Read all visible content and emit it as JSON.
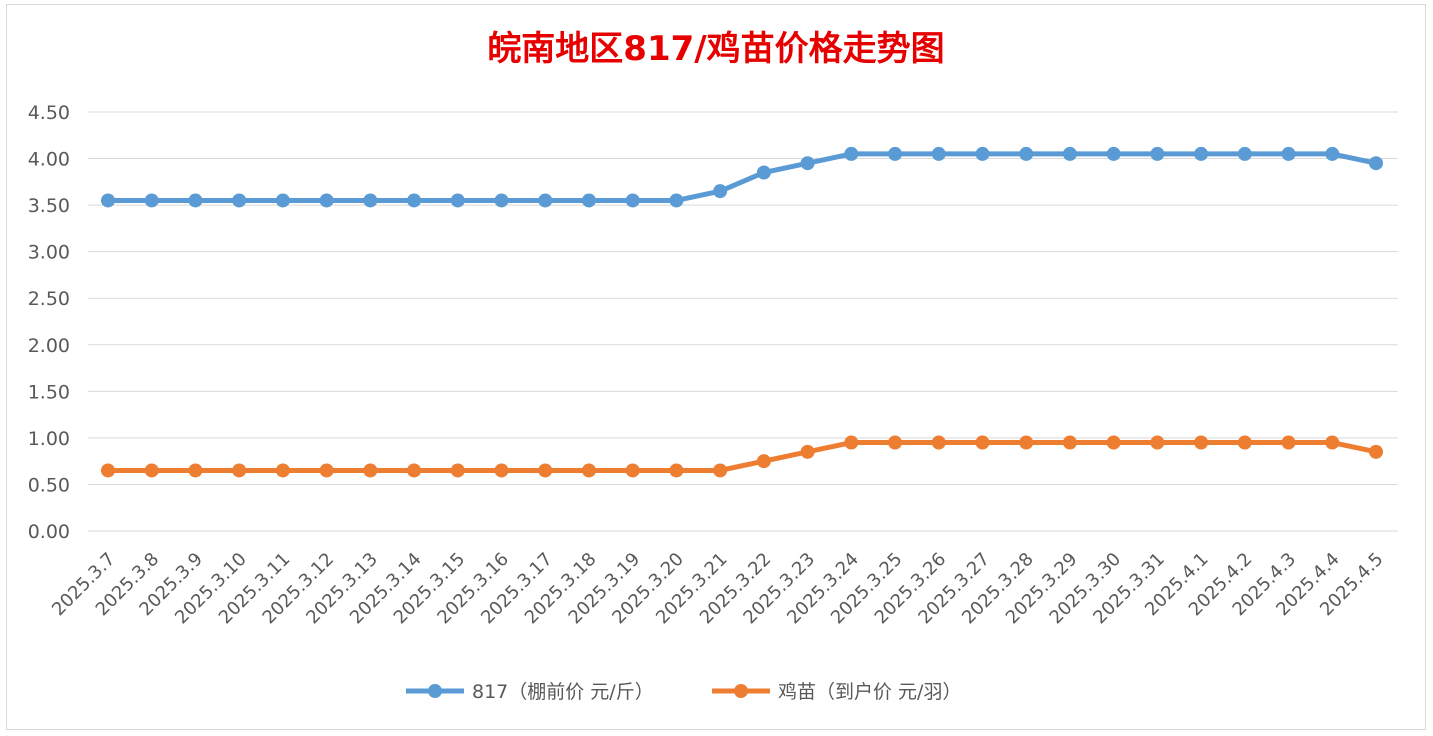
{
  "chart_data": {
    "type": "line",
    "title": "皖南地区817/鸡苗价格走势图",
    "xlabel": "",
    "ylabel": "",
    "ylim": [
      0,
      4.5
    ],
    "yticks": [
      "0.00",
      "0.50",
      "1.00",
      "1.50",
      "2.00",
      "2.50",
      "3.00",
      "3.50",
      "4.00",
      "4.50"
    ],
    "categories": [
      "2025.3.7",
      "2025.3.8",
      "2025.3.9",
      "2025.3.10",
      "2025.3.11",
      "2025.3.12",
      "2025.3.13",
      "2025.3.14",
      "2025.3.15",
      "2025.3.16",
      "2025.3.17",
      "2025.3.18",
      "2025.3.19",
      "2025.3.20",
      "2025.3.21",
      "2025.3.22",
      "2025.3.23",
      "2025.3.24",
      "2025.3.25",
      "2025.3.26",
      "2025.3.27",
      "2025.3.28",
      "2025.3.29",
      "2025.3.30",
      "2025.3.31",
      "2025.4.1",
      "2025.4.2",
      "2025.4.3",
      "2025.4.4",
      "2025.4.5"
    ],
    "series": [
      {
        "name": "817（棚前价 元/斤）",
        "color": "#5b9bd5",
        "values": [
          3.55,
          3.55,
          3.55,
          3.55,
          3.55,
          3.55,
          3.55,
          3.55,
          3.55,
          3.55,
          3.55,
          3.55,
          3.55,
          3.55,
          3.65,
          3.85,
          3.95,
          4.05,
          4.05,
          4.05,
          4.05,
          4.05,
          4.05,
          4.05,
          4.05,
          4.05,
          4.05,
          4.05,
          4.05,
          3.95
        ]
      },
      {
        "name": "鸡苗（到户价 元/羽）",
        "color": "#ed7d31",
        "values": [
          0.65,
          0.65,
          0.65,
          0.65,
          0.65,
          0.65,
          0.65,
          0.65,
          0.65,
          0.65,
          0.65,
          0.65,
          0.65,
          0.65,
          0.65,
          0.75,
          0.85,
          0.95,
          0.95,
          0.95,
          0.95,
          0.95,
          0.95,
          0.95,
          0.95,
          0.95,
          0.95,
          0.95,
          0.95,
          0.85
        ]
      }
    ],
    "grid": true,
    "legend_position": "bottom"
  }
}
